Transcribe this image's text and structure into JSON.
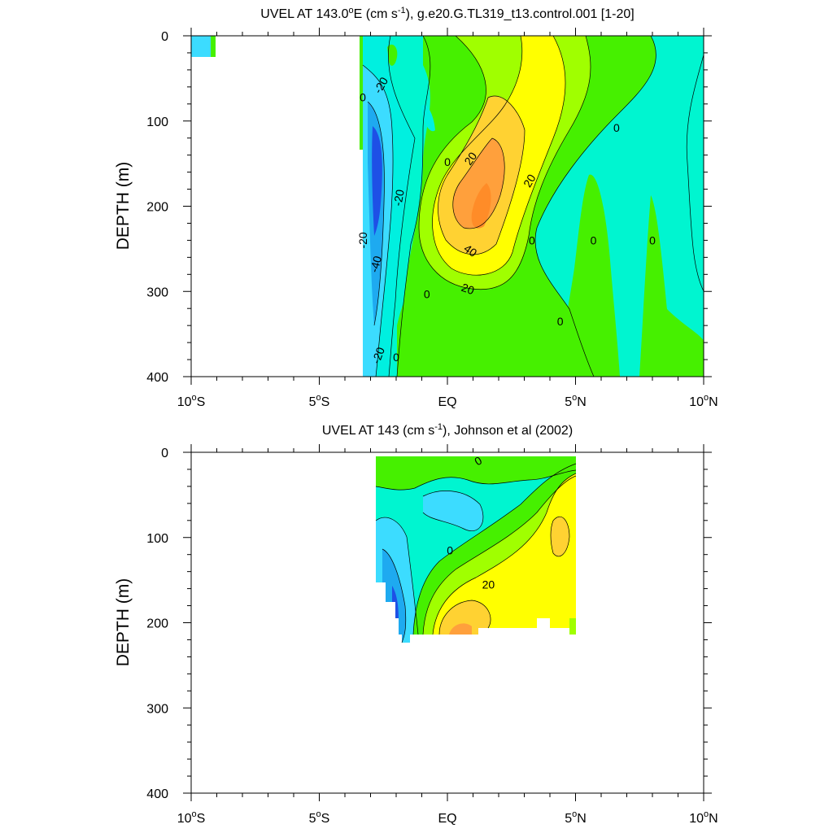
{
  "colors": {
    "strong_west": "#1e50e6",
    "west_3": "#1eaaf0",
    "west_2": "#3cdcff",
    "west_1": "#00f0e0",
    "near_zero": "#00f5d0",
    "east_1": "#46f000",
    "east_2": "#a0ff00",
    "east_3": "#ffff00",
    "east_4": "#ffd232",
    "east_5": "#ffa03c",
    "east_6": "#ff8c28"
  },
  "chart_data": [
    {
      "type": "contour",
      "title_main": "UVEL AT 143.0",
      "title_degree": "o",
      "title_unit_open": "E (cm s",
      "title_exponent": "-1",
      "title_rest": "), g.e20.G.TL319_t13.control.001 [1-20]",
      "ylabel": "DEPTH (m)",
      "xlim": [
        -10,
        10
      ],
      "ylim": [
        0,
        400
      ],
      "y_inverted": true,
      "x_ticks": [
        {
          "value": -10,
          "main": "10",
          "deg": "o",
          "suffix": "S"
        },
        {
          "value": -5,
          "main": "5",
          "deg": "o",
          "suffix": "S"
        },
        {
          "value": 0,
          "main": "EQ",
          "deg": "",
          "suffix": ""
        },
        {
          "value": 5,
          "main": "5",
          "deg": "o",
          "suffix": "N"
        },
        {
          "value": 10,
          "main": "10",
          "deg": "o",
          "suffix": "N"
        }
      ],
      "y_ticks": [
        0,
        100,
        200,
        300,
        400
      ],
      "contour_labels": [
        {
          "x": -2.6,
          "y": 58,
          "text": "-20",
          "angle": -60
        },
        {
          "x": -3.3,
          "y": 72,
          "text": "0",
          "angle": 0
        },
        {
          "x": -1.9,
          "y": 190,
          "text": "-20",
          "angle": -80
        },
        {
          "x": -3.3,
          "y": 240,
          "text": "-20",
          "angle": -90
        },
        {
          "x": -2.8,
          "y": 268,
          "text": "-40",
          "angle": -75
        },
        {
          "x": -2.7,
          "y": 375,
          "text": "-20",
          "angle": -70
        },
        {
          "x": -2.0,
          "y": 377,
          "text": "0",
          "angle": 0
        },
        {
          "x": 0.0,
          "y": 148,
          "text": "0",
          "angle": 0
        },
        {
          "x": 0.9,
          "y": 144,
          "text": "20",
          "angle": -55
        },
        {
          "x": 3.2,
          "y": 170,
          "text": "20",
          "angle": -60
        },
        {
          "x": 0.9,
          "y": 252,
          "text": "40",
          "angle": 35
        },
        {
          "x": 0.8,
          "y": 297,
          "text": "20",
          "angle": 20
        },
        {
          "x": -0.8,
          "y": 303,
          "text": "0",
          "angle": 0
        },
        {
          "x": 3.3,
          "y": 240,
          "text": "0",
          "angle": 0
        },
        {
          "x": 5.7,
          "y": 240,
          "text": "0",
          "angle": 0
        },
        {
          "x": 8.0,
          "y": 240,
          "text": "0",
          "angle": 0
        },
        {
          "x": 4.4,
          "y": 335,
          "text": "0",
          "angle": 0
        },
        {
          "x": 6.6,
          "y": 108,
          "text": "0",
          "angle": 0
        }
      ]
    },
    {
      "type": "contour",
      "title_main": "UVEL AT 143 (cm s",
      "title_exponent": "-1",
      "title_rest": "), Johnson et al (2002)",
      "ylabel": "DEPTH (m)",
      "xlim": [
        -10,
        10
      ],
      "ylim": [
        0,
        400
      ],
      "y_inverted": true,
      "x_ticks": [
        {
          "value": -10,
          "main": "10",
          "deg": "o",
          "suffix": "S"
        },
        {
          "value": -5,
          "main": "5",
          "deg": "o",
          "suffix": "S"
        },
        {
          "value": 0,
          "main": "EQ",
          "deg": "",
          "suffix": ""
        },
        {
          "value": 5,
          "main": "5",
          "deg": "o",
          "suffix": "N"
        },
        {
          "value": 10,
          "main": "10",
          "deg": "o",
          "suffix": "N"
        }
      ],
      "y_ticks": [
        0,
        100,
        200,
        300,
        400
      ],
      "data_extent": {
        "x": [
          -2.8,
          5.0
        ],
        "y": [
          0,
          215
        ]
      },
      "contour_labels": [
        {
          "x": 1.2,
          "y": 10,
          "text": "0",
          "angle": -30
        },
        {
          "x": 0.1,
          "y": 115,
          "text": "0",
          "angle": 0
        },
        {
          "x": 1.6,
          "y": 155,
          "text": "20",
          "angle": 0
        }
      ]
    }
  ]
}
